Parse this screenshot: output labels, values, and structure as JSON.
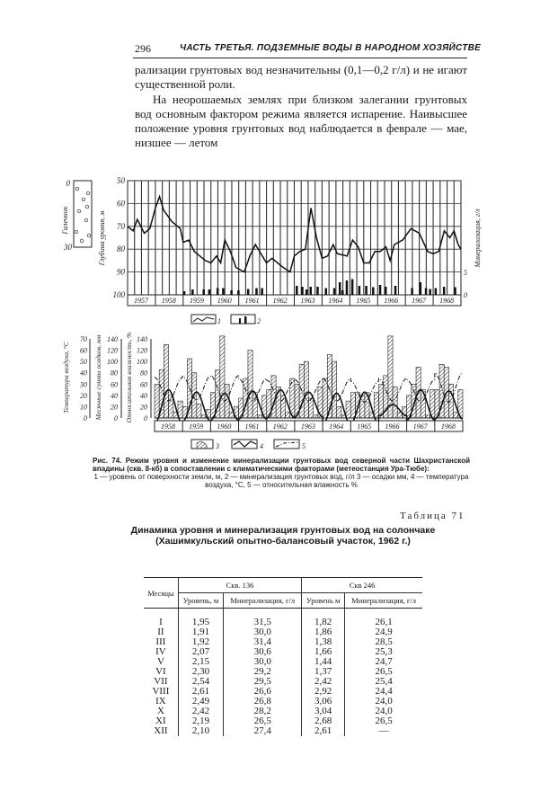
{
  "header": {
    "page_number": "296",
    "running_title": "ЧАСТЬ ТРЕТЬЯ. ПОДЗЕМНЫЕ ВОДЫ В НАРОДНОМ ХОЗЯЙСТВЕ"
  },
  "body": {
    "p1": "рализации грунтовых вод незначительны (0,1—0,2 г/л) и не игают существенной роли.",
    "p2": "На неорошаемых землях при близком залегании грунтовых вод основным фактором режима является испарение. Наивысшее положение уровня грунтовых вод наблюдается в феврале — мае, низшее — летом"
  },
  "chart_data": [
    {
      "type": "line",
      "ylabel": "Глубина уровня, м",
      "y2label": "Минерализация, г/л",
      "lithology_label": "Галечник",
      "lithology_ticks": [
        "0",
        "30"
      ],
      "ylim": [
        50,
        100
      ],
      "y_inverted": true,
      "yticks": [
        "50",
        "60",
        "70",
        "80",
        "90",
        "100"
      ],
      "y2ticks": [
        "0",
        "5"
      ],
      "categories": [
        "1957",
        "1958",
        "1959",
        "1960",
        "1961",
        "1962",
        "1963",
        "1964",
        "1965",
        "1966",
        "1967",
        "1968"
      ],
      "grid": true,
      "series": [
        {
          "name": "1",
          "kind": "line",
          "points": [
            [
              1957.0,
              70
            ],
            [
              1957.2,
              72
            ],
            [
              1957.35,
              67
            ],
            [
              1957.6,
              73
            ],
            [
              1957.8,
              71
            ],
            [
              1958.0,
              62
            ],
            [
              1958.15,
              57
            ],
            [
              1958.3,
              63
            ],
            [
              1958.6,
              68
            ],
            [
              1958.9,
              71
            ],
            [
              1959.0,
              77
            ],
            [
              1959.2,
              76
            ],
            [
              1959.4,
              81
            ],
            [
              1959.6,
              83
            ],
            [
              1959.8,
              85
            ],
            [
              1960.0,
              86
            ],
            [
              1960.2,
              83
            ],
            [
              1960.35,
              86
            ],
            [
              1960.5,
              76
            ],
            [
              1960.7,
              81
            ],
            [
              1960.9,
              88
            ],
            [
              1961.2,
              90
            ],
            [
              1961.4,
              83
            ],
            [
              1961.6,
              78
            ],
            [
              1961.8,
              82
            ],
            [
              1962.0,
              86
            ],
            [
              1962.2,
              84
            ],
            [
              1962.6,
              88
            ],
            [
              1962.85,
              90
            ],
            [
              1963.0,
              83
            ],
            [
              1963.2,
              81
            ],
            [
              1963.4,
              80
            ],
            [
              1963.6,
              62
            ],
            [
              1963.8,
              75
            ],
            [
              1964.0,
              84
            ],
            [
              1964.2,
              83
            ],
            [
              1964.4,
              78
            ],
            [
              1964.55,
              82
            ],
            [
              1964.9,
              83
            ],
            [
              1965.1,
              76
            ],
            [
              1965.3,
              79
            ],
            [
              1965.5,
              86
            ],
            [
              1965.7,
              86
            ],
            [
              1965.9,
              81
            ],
            [
              1966.1,
              81
            ],
            [
              1966.3,
              79
            ],
            [
              1966.45,
              85
            ],
            [
              1966.6,
              78
            ],
            [
              1966.9,
              76
            ],
            [
              1967.2,
              71
            ],
            [
              1967.5,
              73
            ],
            [
              1967.8,
              81
            ],
            [
              1968.0,
              82
            ],
            [
              1968.2,
              81
            ],
            [
              1968.4,
              72
            ],
            [
              1968.6,
              75
            ],
            [
              1968.75,
              72
            ],
            [
              1968.9,
              78
            ],
            [
              1969.0,
              80
            ]
          ]
        },
        {
          "name": "2",
          "kind": "bar",
          "points": [
            [
              1959.0,
              0.8
            ],
            [
              1959.3,
              1.2
            ],
            [
              1959.7,
              1.2
            ],
            [
              1959.9,
              1.2
            ],
            [
              1960.2,
              1.5
            ],
            [
              1960.4,
              1.5
            ],
            [
              1960.7,
              1.0
            ],
            [
              1960.95,
              1.0
            ],
            [
              1961.3,
              1.3
            ],
            [
              1961.6,
              1.5
            ],
            [
              1961.8,
              1.5
            ],
            [
              1963.05,
              2.0
            ],
            [
              1963.25,
              1.8
            ],
            [
              1963.4,
              1.2
            ],
            [
              1963.55,
              1.8
            ],
            [
              1963.8,
              1.8
            ],
            [
              1964.1,
              1.5
            ],
            [
              1964.4,
              1.5
            ],
            [
              1964.6,
              2.8
            ],
            [
              1964.7,
              1.0
            ],
            [
              1964.85,
              3.2
            ],
            [
              1965.05,
              3.5
            ],
            [
              1965.3,
              2.0
            ],
            [
              1965.55,
              2.0
            ],
            [
              1965.8,
              1.7
            ],
            [
              1966.05,
              2.2
            ],
            [
              1966.25,
              1.8
            ],
            [
              1966.6,
              2.0
            ],
            [
              1967.2,
              1.5
            ],
            [
              1967.5,
              2.8
            ],
            [
              1967.7,
              1.5
            ],
            [
              1967.85,
              1.3
            ],
            [
              1968.05,
              1.5
            ],
            [
              1968.35,
              1.8
            ],
            [
              1968.75,
              1.7
            ]
          ]
        }
      ],
      "legend": [
        "1",
        "2"
      ]
    },
    {
      "type": "bar",
      "ylabels": [
        "Температура воздуха, °C",
        "Месячные суммы осадков, мм",
        "Относительная влажность, %"
      ],
      "temp_ticks": [
        "0",
        "10",
        "20",
        "30",
        "40",
        "50",
        "60",
        "70"
      ],
      "precip_ticks": [
        "0",
        "20",
        "40",
        "60",
        "80",
        "100",
        "120",
        "140"
      ],
      "humidity_ticks": [
        "0",
        "20",
        "40",
        "60",
        "80",
        "100",
        "120",
        "140"
      ],
      "categories": [
        "1958",
        "1959",
        "1960",
        "1961",
        "1962",
        "1963",
        "1964",
        "1965",
        "1966",
        "1967",
        "1968"
      ],
      "precipitation": [
        [
          60,
          85,
          130,
          40,
          10,
          30
        ],
        [
          20,
          105,
          80,
          25,
          5,
          15
        ],
        [
          45,
          85,
          145,
          60,
          10,
          20
        ],
        [
          35,
          70,
          120,
          45,
          5,
          40
        ],
        [
          50,
          75,
          55,
          40,
          10,
          70
        ],
        [
          60,
          95,
          100,
          35,
          5,
          55
        ],
        [
          70,
          112,
          100,
          20,
          5,
          30
        ],
        [
          45,
          45,
          40,
          45,
          10,
          45
        ],
        [
          60,
          75,
          145,
          55,
          10,
          20
        ],
        [
          40,
          60,
          90,
          50,
          5,
          50
        ],
        [
          50,
          95,
          90,
          60,
          10,
          50
        ]
      ],
      "temperature": [
        [
          -5,
          25
        ],
        [
          -3,
          23
        ],
        [
          -2,
          22
        ],
        [
          -1,
          24
        ],
        [
          0,
          25
        ],
        [
          1,
          23
        ],
        [
          -6,
          22
        ],
        [
          -5,
          23
        ],
        [
          2,
          12
        ],
        [
          -2,
          25
        ],
        [
          -1,
          24
        ]
      ],
      "humidity": [
        [
          30,
          72
        ],
        [
          32,
          74
        ],
        [
          30,
          75
        ],
        [
          30,
          70
        ],
        [
          30,
          67
        ],
        [
          30,
          68
        ],
        [
          30,
          70
        ],
        [
          28,
          65
        ],
        [
          30,
          70
        ],
        [
          28,
          68
        ],
        [
          28,
          80
        ]
      ],
      "legend": [
        "3",
        "4",
        "5"
      ]
    }
  ],
  "caption": {
    "line1": "Рис. 74. Режим уровня и изменение минерализации грунтовых вод северной части Шахристанской впадины (скв. 8-кб) в сопоставлении с климатическими факторами (метеостанция Ура-Тюбе):",
    "line2": "1 — уровень от поверхности земли, м, 2 — минерализация грунтовых вод, г/л 3 — осадки мм, 4 — температура воздуха, °C, 5 — относительная влажность %"
  },
  "table": {
    "number": "Таблица 71",
    "title": "Динамика уровня и минерализация грунтовых вод на солончаке (Хашимкульский опытно-балансовый участок, 1962 г.)",
    "col_month": "Месяцы",
    "group1": "Скв. 136",
    "group2": "Скв 246",
    "col_level": "Уровень, м",
    "col_min": "Минерализация, г/л",
    "col_level2": "Уровень м",
    "col_min2": "Минерализация, г/л",
    "rows": [
      [
        "I",
        "1,95",
        "31,5",
        "1,82",
        "26,1"
      ],
      [
        "II",
        "1,91",
        "30,0",
        "1,86",
        "24,9"
      ],
      [
        "III",
        "1,92",
        "31,4",
        "1,38",
        "28,5"
      ],
      [
        "IV",
        "2,07",
        "30,6",
        "1,66",
        "25,3"
      ],
      [
        "V",
        "2,15",
        "30,0",
        "1,44",
        "24,7"
      ],
      [
        "VI",
        "2,30",
        "29,2",
        "1,37",
        "26,5"
      ],
      [
        "VII",
        "2,54",
        "29,5",
        "2,42",
        "25,4"
      ],
      [
        "VIII",
        "2,61",
        "26,6",
        "2,92",
        "24,4"
      ],
      [
        "IX",
        "2,49",
        "26,8",
        "3,06",
        "24,0"
      ],
      [
        "X",
        "2,42",
        "28,2",
        "3,04",
        "24,0"
      ],
      [
        "XI",
        "2,19",
        "26,5",
        "2,68",
        "26,5"
      ],
      [
        "XII",
        "2,10",
        "27,4",
        "2,61",
        "—"
      ]
    ]
  }
}
